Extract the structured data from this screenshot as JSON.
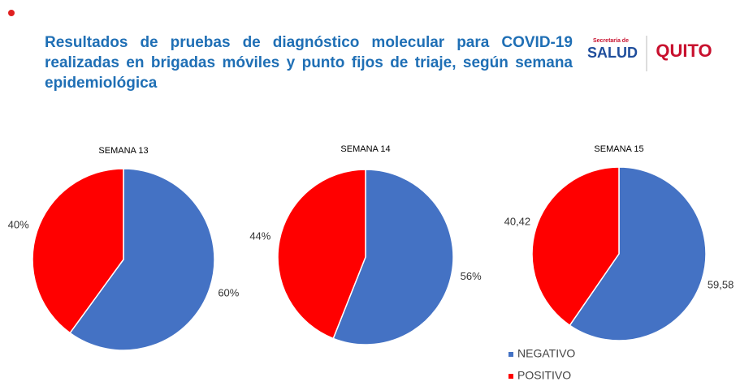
{
  "title": "Resultados de pruebas de diagnóstico molecular para COVID-19 realizadas en brigadas móviles y punto fijos de triaje, según semana epidemiológica",
  "logo": {
    "line1": "Secretaría de",
    "line2": "SALUD",
    "city": "QUITO"
  },
  "legend": {
    "labels": [
      "NEGATIVO",
      "POSITIVO"
    ],
    "colors": [
      "#4472c4",
      "#ff0000"
    ]
  },
  "chart_data": [
    {
      "type": "pie",
      "title": "SEMANA 13",
      "values": [
        60,
        40
      ],
      "value_labels": [
        "60%",
        "40%"
      ]
    },
    {
      "type": "pie",
      "title": "SEMANA 14",
      "values": [
        56,
        44
      ],
      "value_labels": [
        "56%",
        "44%"
      ]
    },
    {
      "type": "pie",
      "title": "SEMANA 15",
      "values": [
        59.58,
        40.42
      ],
      "value_labels": [
        "59,58",
        "40,42"
      ]
    }
  ]
}
